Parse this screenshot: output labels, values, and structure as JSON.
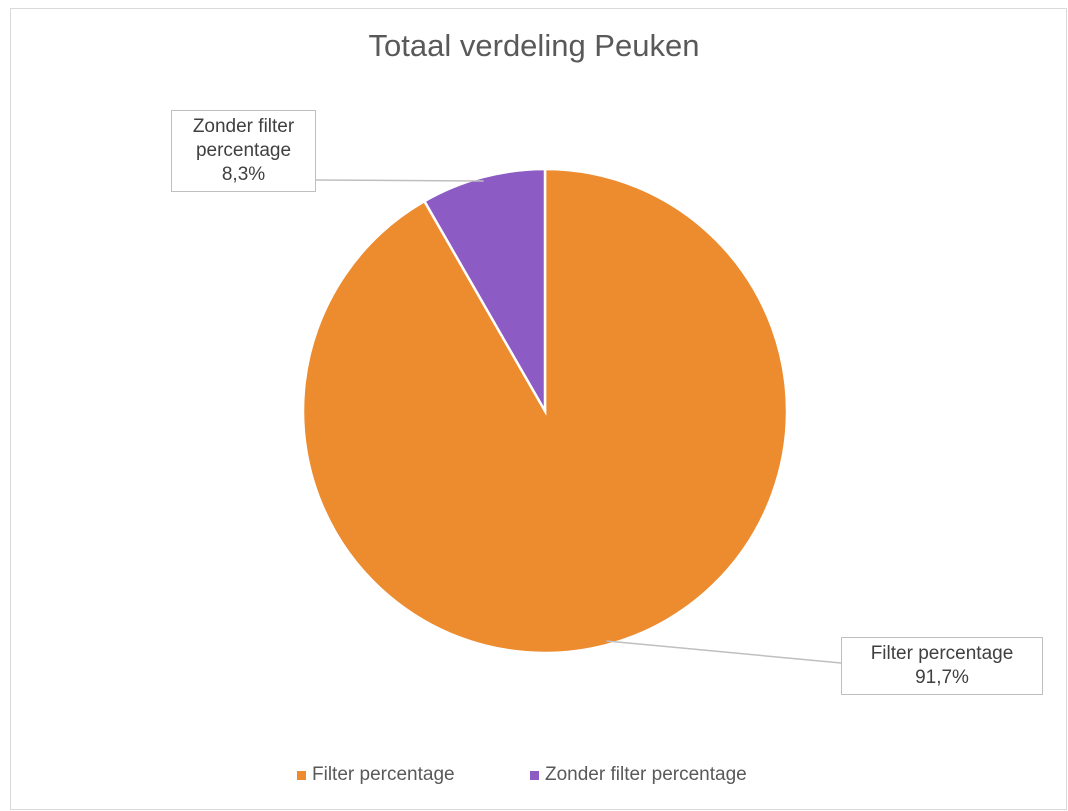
{
  "chart_data": {
    "type": "pie",
    "title": "Totaal verdeling Peuken",
    "categories": [
      "Filter percentage",
      "Zonder filter percentage"
    ],
    "values": [
      91.7,
      8.3
    ],
    "value_labels": [
      "91,7%",
      "8,3%"
    ],
    "colors": [
      "#ed8b2f",
      "#8c5bc4"
    ],
    "legend": "bottom"
  }
}
